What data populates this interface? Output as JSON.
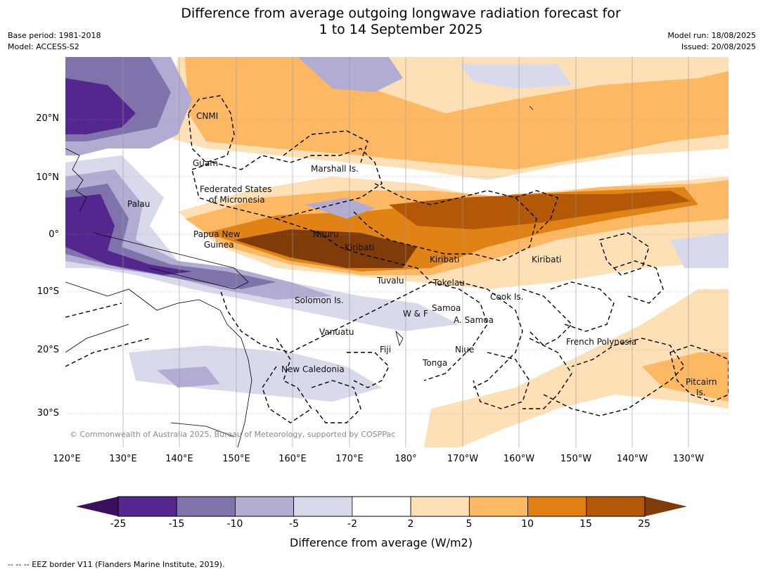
{
  "header": {
    "title_line1": "Difference from average outgoing longwave radiation forecast for",
    "title_line2": "1 to 14 September 2025",
    "base_period": "Base period: 1981-2018",
    "model": "Model: ACCESS-S2",
    "model_run": "Model run: 18/08/2025",
    "issued": "Issued: 20/08/2025"
  },
  "map": {
    "lat_labels": [
      "20°N",
      "10°N",
      "0°",
      "10°S",
      "20°S",
      "30°S"
    ],
    "lon_labels": [
      "120°E",
      "130°E",
      "140°E",
      "150°E",
      "160°E",
      "170°E",
      "180°",
      "170°W",
      "160°W",
      "150°W",
      "140°W",
      "130°W"
    ],
    "regions": {
      "cnmi": "CNMI",
      "guam": "Guam",
      "marshall": "Marshall Is.",
      "fsm1": "Federated States",
      "fsm2": "of Micronesia",
      "palau": "Palau",
      "png1": "Papua New",
      "png2": "Guinea",
      "nauru": "Nauru",
      "kiribati_w": "Kiribati",
      "kiribati_c": "Kiribati",
      "kiribati_e": "Kiribati",
      "tuvalu": "Tuvalu",
      "tokelau": "Tokelau",
      "cook": "Cook Is.",
      "solomon": "Solomon Is.",
      "wf": "W & F",
      "samoa": "Samoa",
      "asamoa": "A. Samoa",
      "vanuatu": "Vanuatu",
      "fiji": "Fiji",
      "niue": "Niue",
      "tonga": "Tonga",
      "new_caledonia": "New Caledonia",
      "french_polynesia": "French Polynesia",
      "pitcairn1": "Pitcairn",
      "pitcairn2": "Is."
    },
    "copyright": "© Commonwealth of Australia 2025, Bureau of Meteorology, supported by COSPPac"
  },
  "colorbar": {
    "ticks": [
      "-25",
      "-15",
      "-10",
      "-5",
      "-2",
      "2",
      "5",
      "10",
      "15",
      "25"
    ],
    "colors": [
      "#3b0f5e",
      "#54278f",
      "#8073ac",
      "#b2abd2",
      "#d8daeb",
      "#ffffff",
      "#fee0b6",
      "#fdb863",
      "#e08214",
      "#b35806",
      "#7f3b08"
    ],
    "label": "Difference from average (W/m2)"
  },
  "footnote": "--  --  -- EEZ border V11 (Flanders Marine Institute, 2019)."
}
